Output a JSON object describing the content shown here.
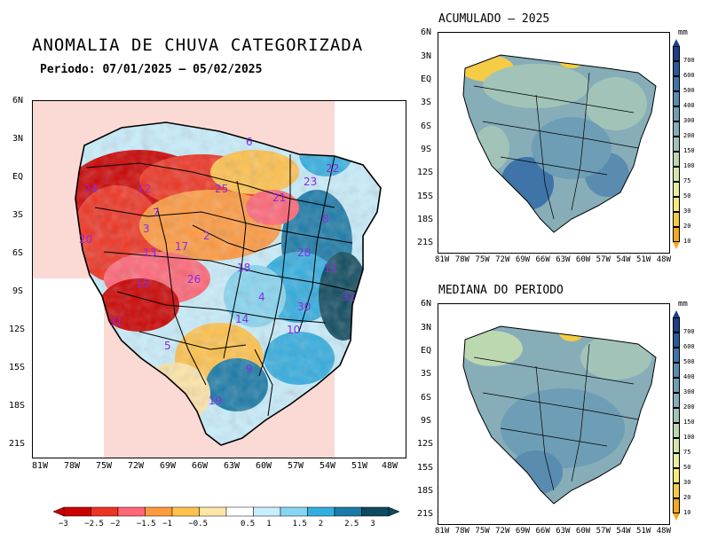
{
  "main": {
    "title": "ANOMALIA DE CHUVA CATEGORIZADA",
    "subtitle": "Periodo: 07/01/2025 – 05/02/2025",
    "lat_ticks": [
      "6N",
      "3N",
      "EQ",
      "3S",
      "6S",
      "9S",
      "12S",
      "15S",
      "18S",
      "21S"
    ],
    "lon_ticks": [
      "81W",
      "78W",
      "75W",
      "72W",
      "69W",
      "66W",
      "63W",
      "60W",
      "57W",
      "54W",
      "51W",
      "48W"
    ],
    "basin_labels": [
      "6",
      "22",
      "23",
      "24",
      "12",
      "25",
      "21",
      "7",
      "3",
      "17",
      "2",
      "8",
      "20",
      "13",
      "28",
      "11",
      "15",
      "26",
      "18",
      "4",
      "32",
      "31",
      "30",
      "14",
      "10",
      "5",
      "9",
      "19"
    ],
    "colorbar_ticks": [
      "−3",
      "−2.5",
      "−2",
      "−1.5",
      "−1",
      "−0.5",
      "0.5",
      "1",
      "1.5",
      "2",
      "2.5",
      "3"
    ],
    "colorbar_colors": [
      "#cc0000",
      "#ee3322",
      "#ff6677",
      "#ff9a40",
      "#ffc24d",
      "#ffe6a8",
      "#ffffff",
      "#c8eefc",
      "#86d6f2",
      "#33aee0",
      "#1a7aa8",
      "#0e4a5e"
    ]
  },
  "acumulado": {
    "title": "ACUMULADO – 2025",
    "lat_ticks": [
      "6N",
      "3N",
      "EQ",
      "3S",
      "6S",
      "9S",
      "12S",
      "15S",
      "18S",
      "21S"
    ],
    "lon_ticks": [
      "81W",
      "78W",
      "75W",
      "72W",
      "69W",
      "66W",
      "63W",
      "60W",
      "57W",
      "54W",
      "51W",
      "48W"
    ]
  },
  "mediana": {
    "title": "MEDIANA DO PERIODO",
    "lat_ticks": [
      "6N",
      "3N",
      "EQ",
      "3S",
      "6S",
      "9S",
      "12S",
      "15S",
      "18S",
      "21S"
    ],
    "lon_ticks": [
      "81W",
      "78W",
      "75W",
      "72W",
      "69W",
      "66W",
      "63W",
      "60W",
      "57W",
      "54W",
      "51W",
      "48W"
    ]
  },
  "precip_legend": {
    "unit": "mm",
    "ticks": [
      "700",
      "600",
      "500",
      "400",
      "300",
      "200",
      "150",
      "100",
      "75",
      "50",
      "30",
      "20",
      "10"
    ],
    "colors": [
      "#1c3f8a",
      "#2a5a9c",
      "#3f74a8",
      "#5a8cb0",
      "#6e9eb5",
      "#86adb8",
      "#a2c4b8",
      "#bcd8b0",
      "#d4e7a8",
      "#e8f0a0",
      "#f7ec78",
      "#f5cc45",
      "#f2a820"
    ]
  }
}
